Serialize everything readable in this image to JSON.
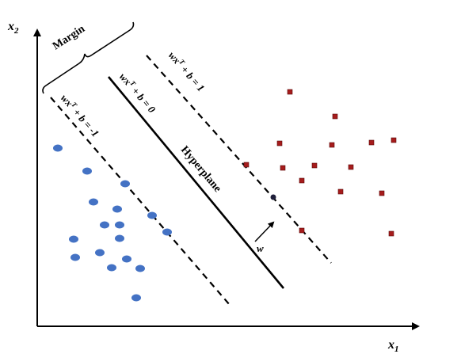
{
  "axes": {
    "x_label": "x",
    "x_sub": "1",
    "y_label": "x",
    "y_sub": "2"
  },
  "labels": {
    "margin": "Margin",
    "hyperplane": "Hyperplane",
    "w_vector": "w"
  },
  "equations": {
    "positive": {
      "lhs": "wx",
      "sup": "T",
      "rhs": " + b = 1"
    },
    "zero": {
      "lhs": "wx",
      "sup": "T",
      "rhs": " + b = 0"
    },
    "negative": {
      "lhs": "wx",
      "sup": "T",
      "rhs": " + b = -1"
    }
  },
  "colors": {
    "class_negative": "#4472c4",
    "class_positive": "#a61c1c",
    "support_vector": "#1f3864",
    "axis": "#000000"
  },
  "class_negative_count": 19,
  "class_positive_count": 19
}
